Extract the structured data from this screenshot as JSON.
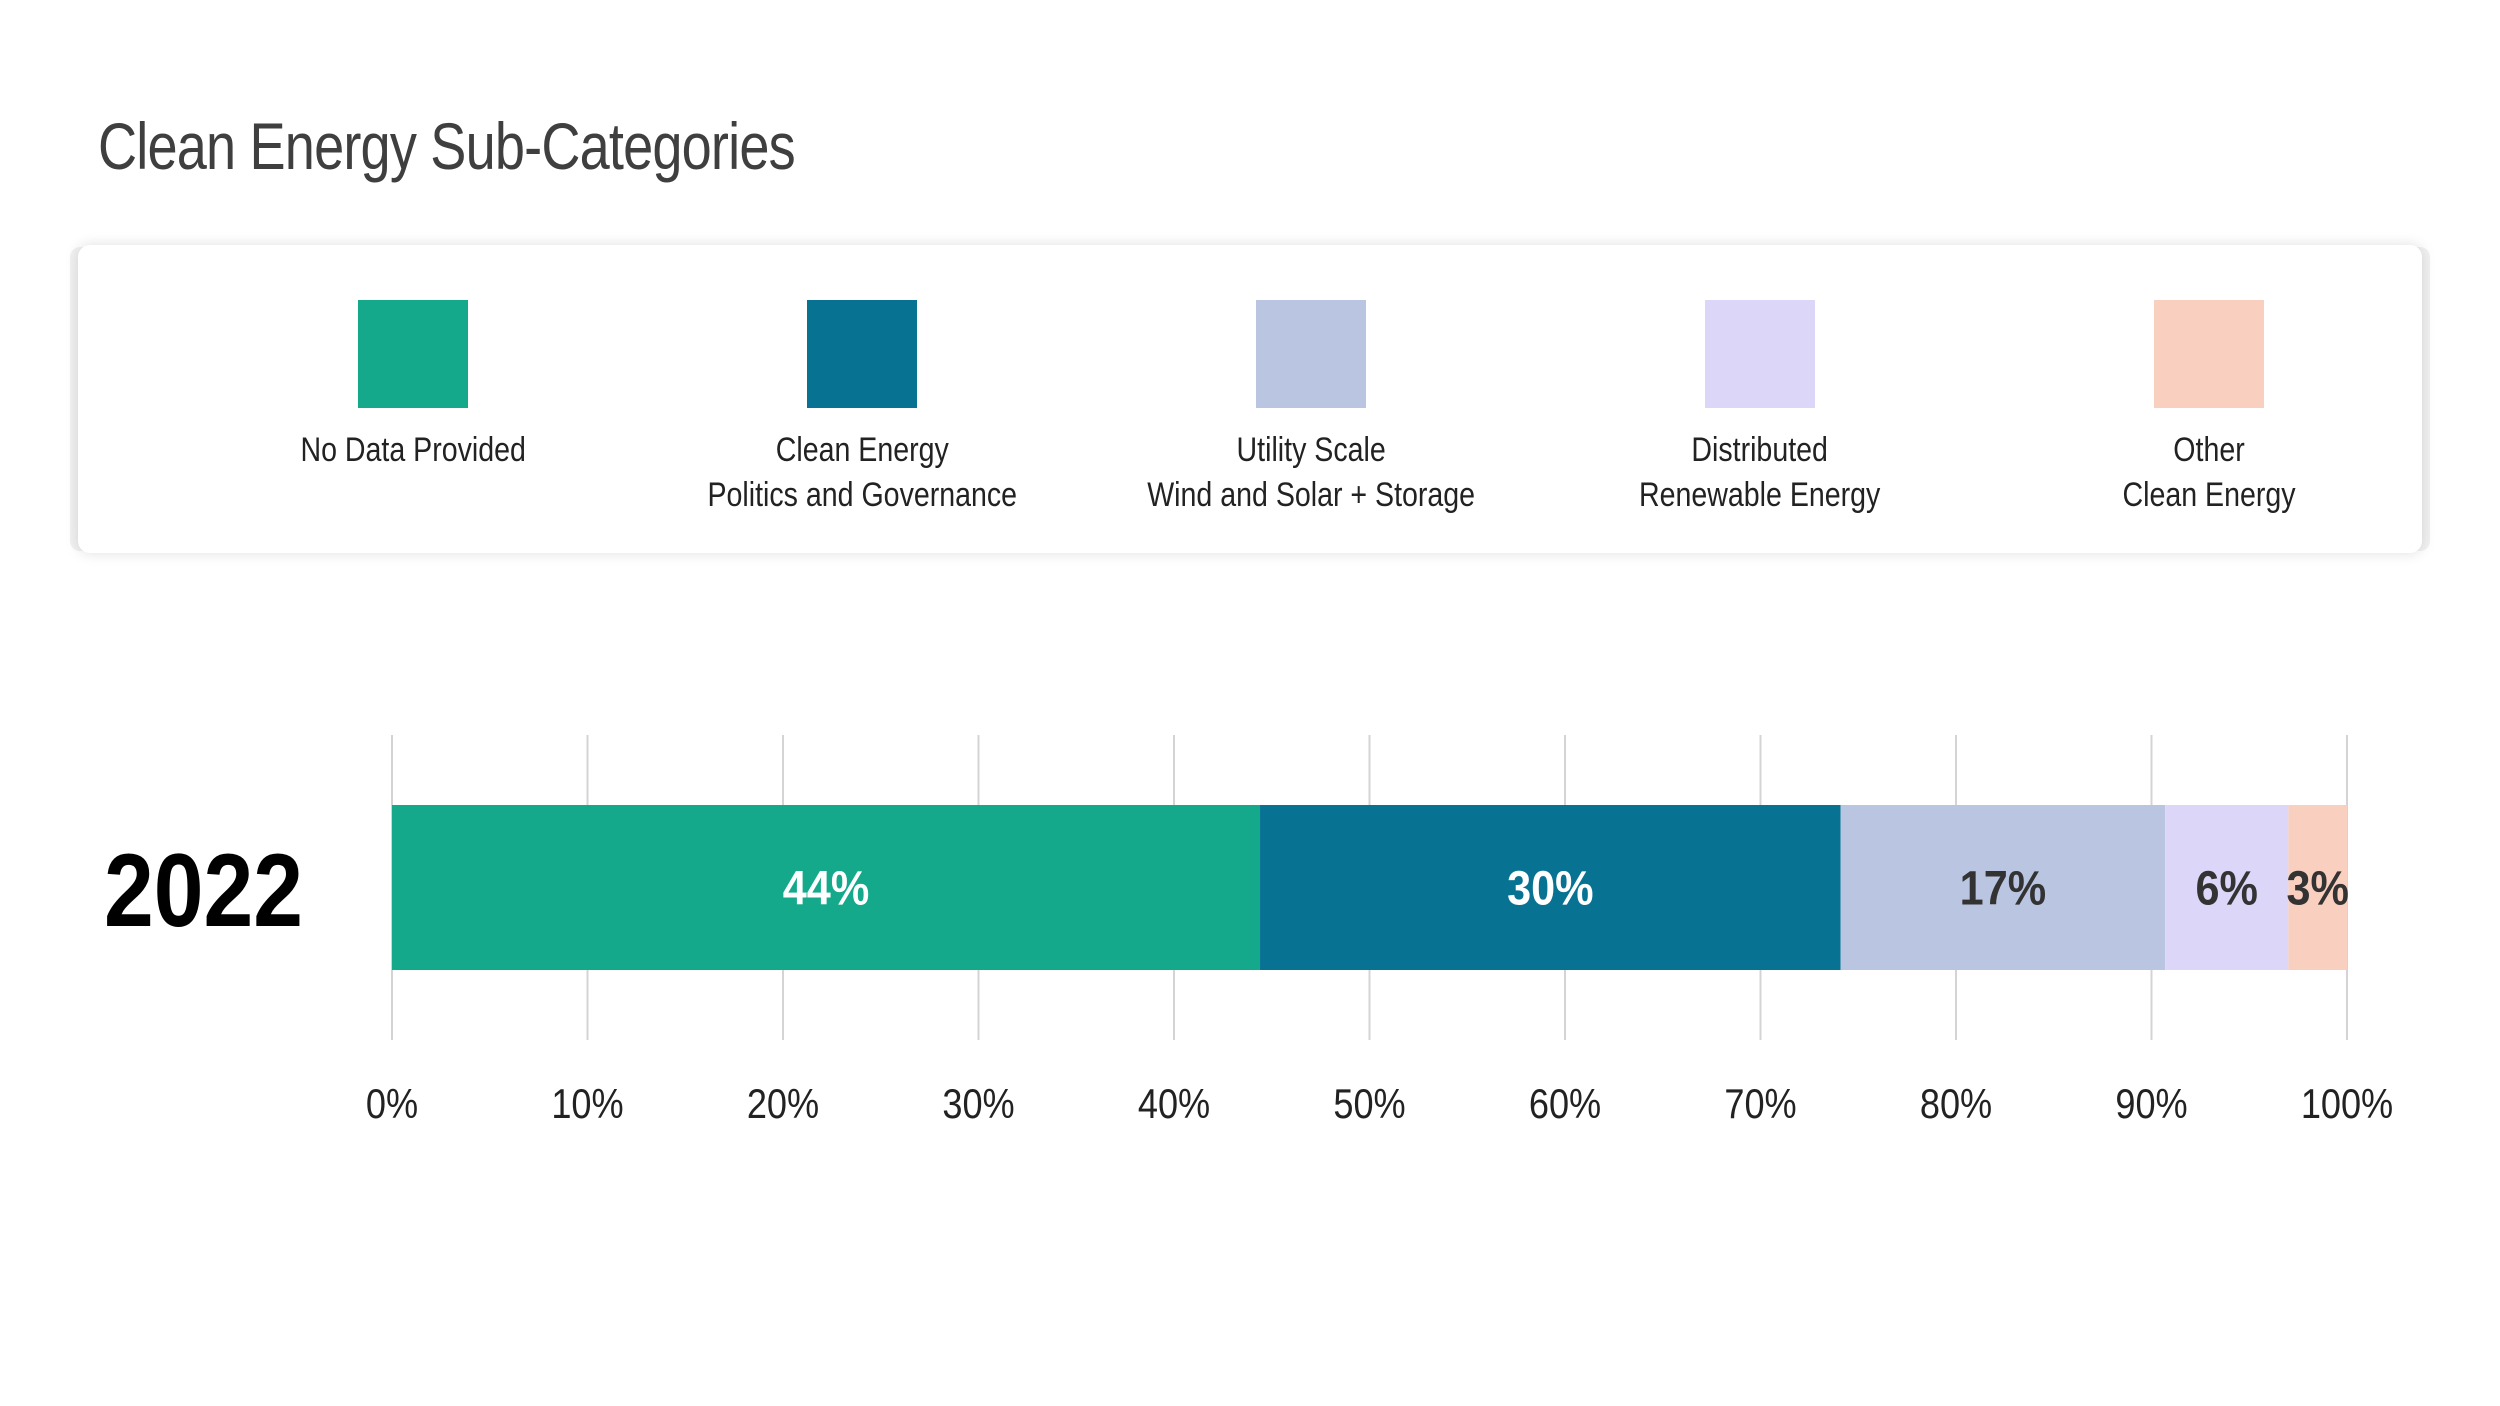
{
  "chart_data": {
    "type": "bar",
    "orientation": "horizontal",
    "stacked": true,
    "title": "Clean Energy Sub-Categories",
    "categories": [
      "2022"
    ],
    "series": [
      {
        "name": "No Data Provided",
        "values": [
          44.4
        ],
        "label": "44%",
        "color": "#13a98a",
        "label_color": "#ffffff"
      },
      {
        "name": "Clean Energy\nPolitics and Governance",
        "values": [
          29.7
        ],
        "label": "30%",
        "color": "#087293",
        "label_color": "#ffffff"
      },
      {
        "name": "Utility Scale\nWind and Solar + Storage",
        "values": [
          16.6
        ],
        "label": "17%",
        "color": "#bac5e2",
        "label_color": "#333333"
      },
      {
        "name": "Distributed\nRenewable Energy",
        "values": [
          6.3
        ],
        "label": "6%",
        "color": "#dcd6f8",
        "label_color": "#333333"
      },
      {
        "name": "Other\nClean Energy",
        "values": [
          3.0
        ],
        "label": "3%",
        "color": "#f9cfc0",
        "label_color": "#333333"
      }
    ],
    "xlim": [
      0,
      100
    ],
    "x_ticks": [
      "0%",
      "10%",
      "20%",
      "30%",
      "40%",
      "50%",
      "60%",
      "70%",
      "80%",
      "90%",
      "100%"
    ],
    "grid": true,
    "legend_position": "top"
  }
}
